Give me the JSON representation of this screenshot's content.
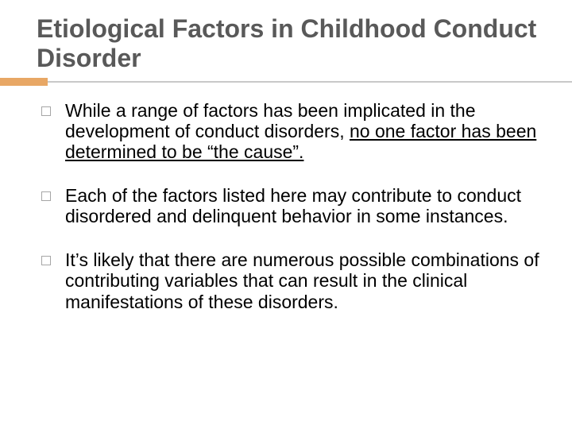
{
  "slide": {
    "title": "Etiological Factors in Childhood Conduct Disorder",
    "accent_color": "#e8a765",
    "underline_color": "#c9c9c9",
    "title_color": "#595959",
    "text_color": "#000000",
    "background_color": "#ffffff",
    "title_fontsize": 32,
    "body_fontsize": 23,
    "bullets": [
      {
        "pre": "While a range of factors has been implicated in the development of conduct disorders, ",
        "underlined": "no one factor has been determined to be “the cause”.",
        "post": ""
      },
      {
        "pre": "Each of the factors listed here may contribute to conduct disordered and delinquent behavior in some instances.",
        "underlined": "",
        "post": ""
      },
      {
        "pre": "It’s likely that there are numerous possible combinations of contributing variables that can result in the clinical manifestations of these disorders.",
        "underlined": "",
        "post": ""
      }
    ]
  }
}
